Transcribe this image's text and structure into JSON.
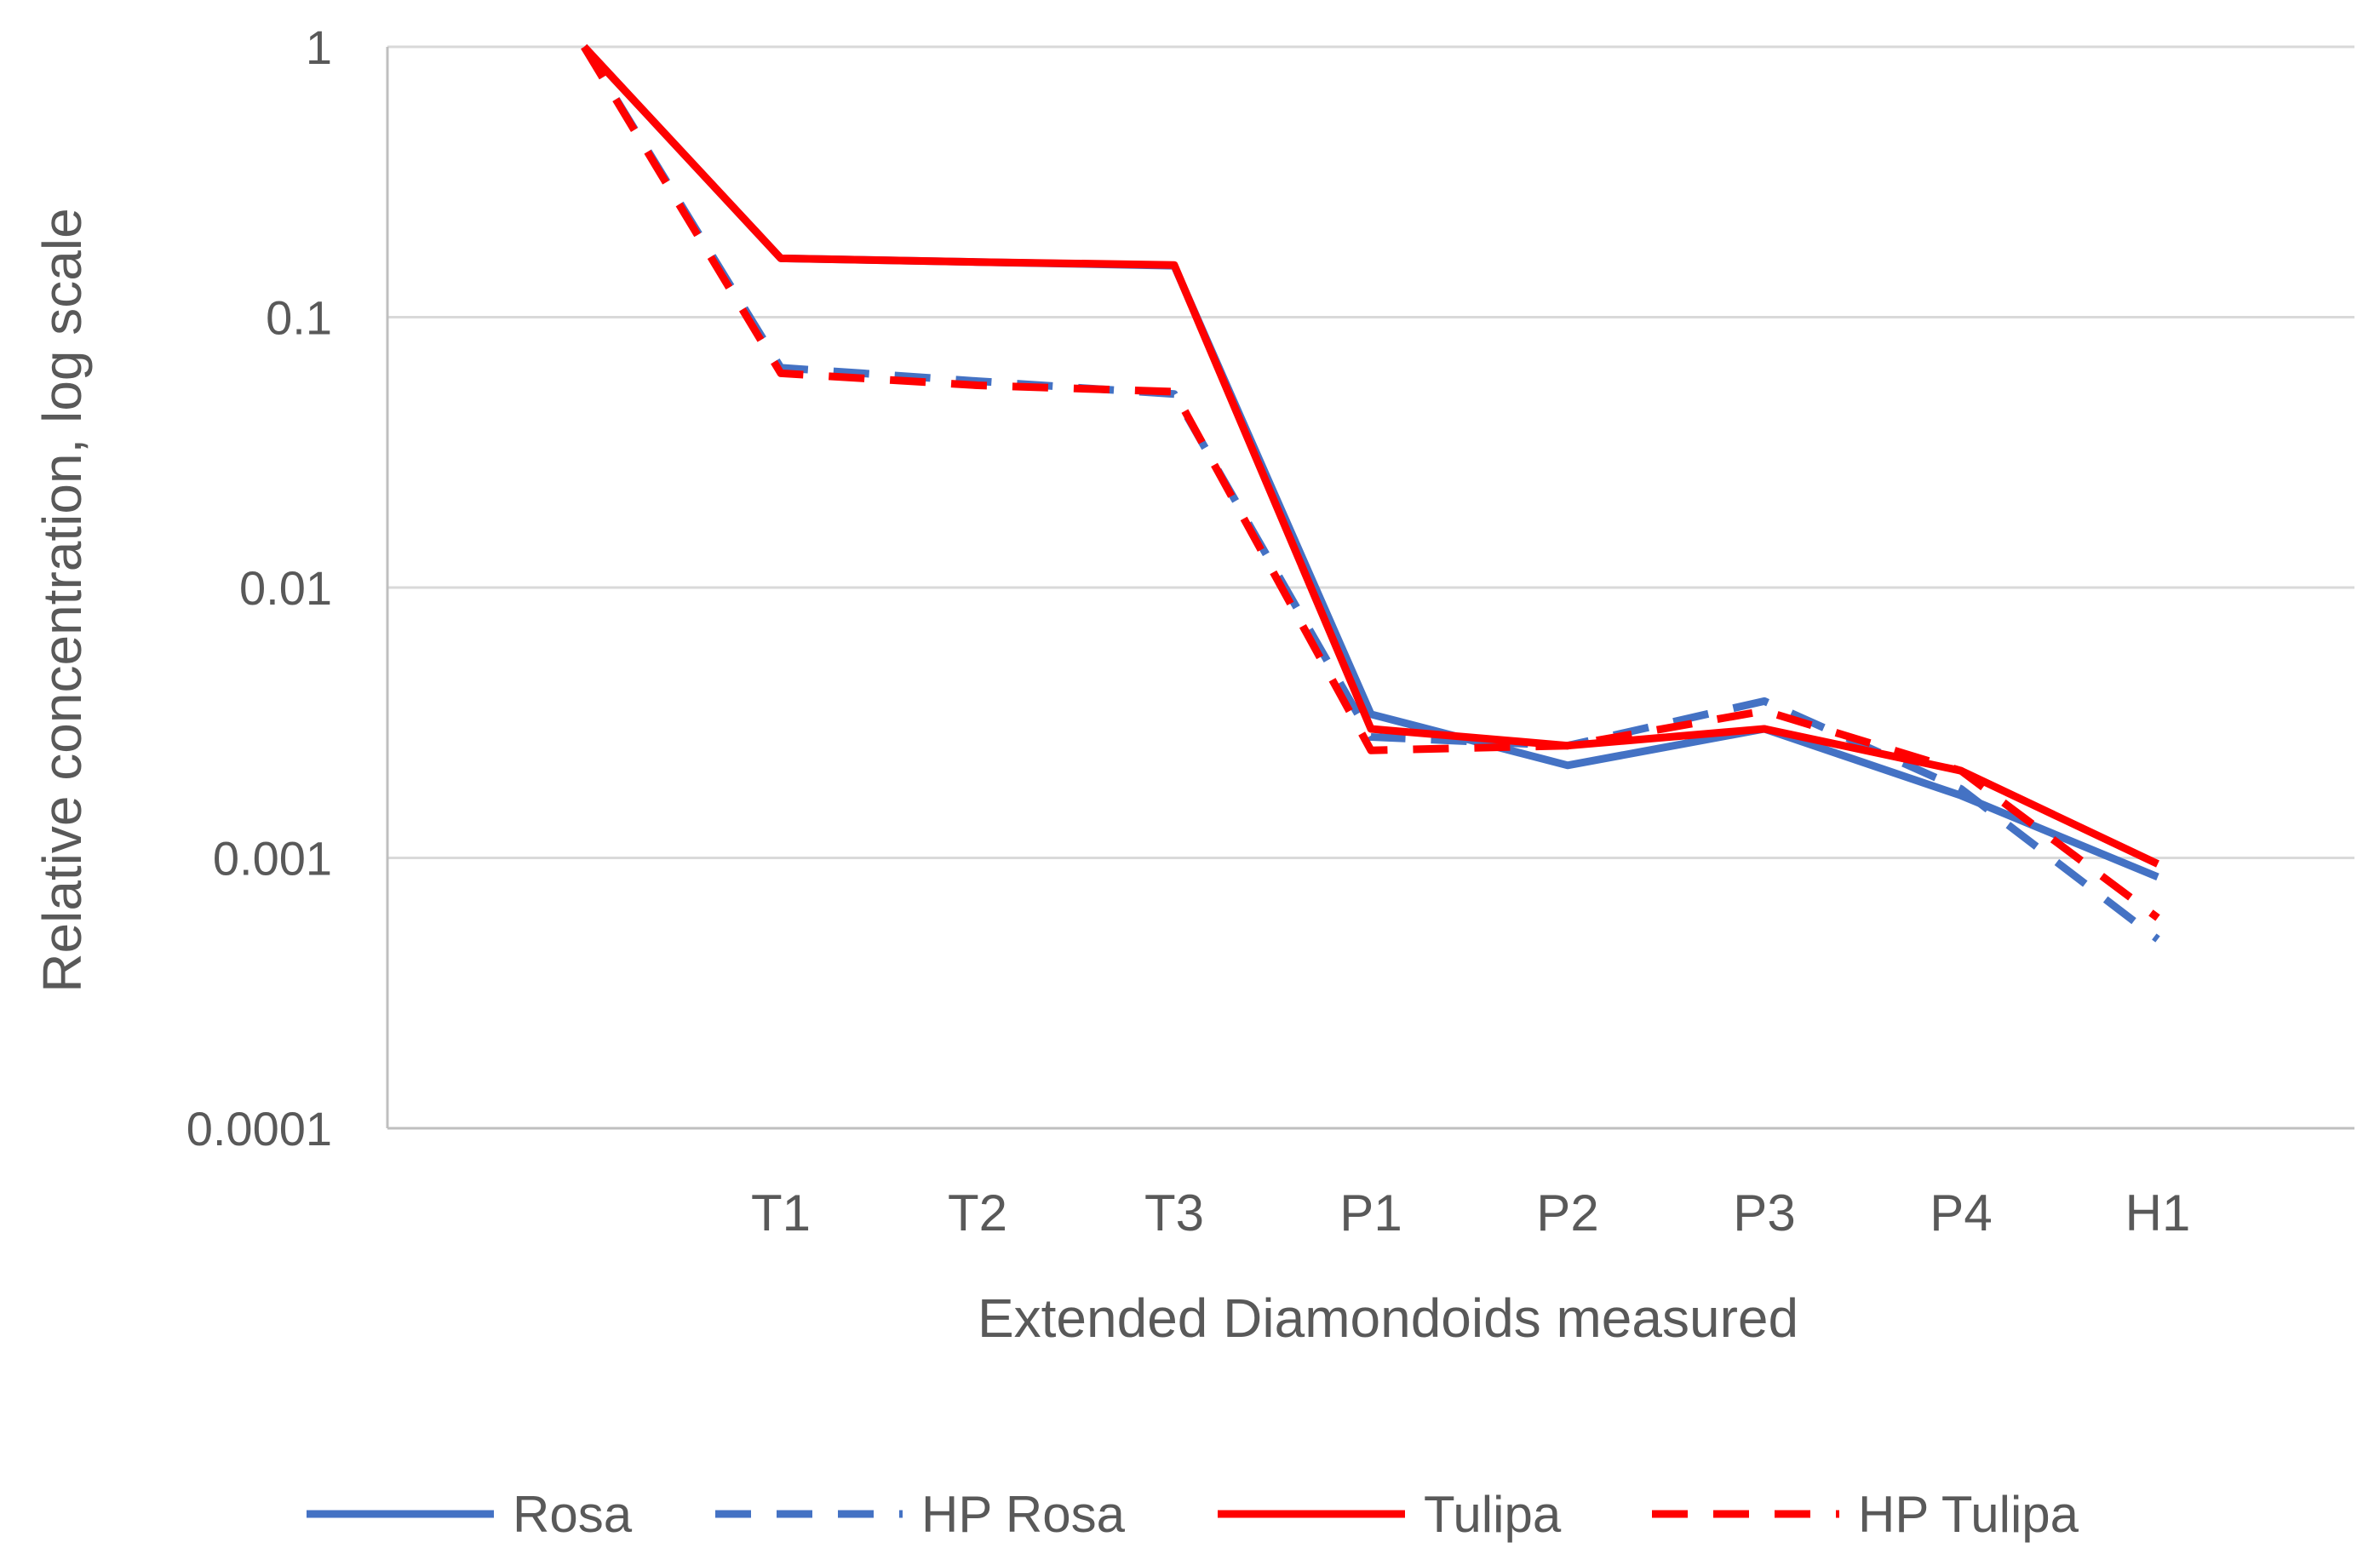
{
  "chart_data": {
    "type": "line",
    "title": "",
    "xlabel": "Extended Diamondoids measured",
    "ylabel": "Relative concentration, log scale",
    "y_scale": "log",
    "ylim": [
      0.0001,
      1
    ],
    "y_ticks": [
      "1",
      "0.1",
      "0.01",
      "0.001",
      "0.0001"
    ],
    "y_tick_values": [
      1,
      0.1,
      0.01,
      0.001,
      0.0001
    ],
    "categories": [
      "",
      "T1",
      "T2",
      "T3",
      "P1",
      "P2",
      "P3",
      "P4",
      "H1"
    ],
    "grid": true,
    "legend_position": "bottom",
    "series": [
      {
        "name": "Rosa",
        "color": "#4472C4",
        "dash": "solid",
        "values": [
          1,
          0.165,
          0.16,
          0.155,
          0.0034,
          0.0022,
          0.003,
          0.0017,
          0.00085
        ]
      },
      {
        "name": "HP Rosa",
        "color": "#4472C4",
        "dash": "dashed",
        "values": [
          1,
          0.065,
          0.058,
          0.052,
          0.0028,
          0.0026,
          0.0038,
          0.0018,
          0.0005
        ]
      },
      {
        "name": "Tulipa",
        "color": "#FF0000",
        "dash": "solid",
        "values": [
          1,
          0.165,
          0.16,
          0.156,
          0.003,
          0.0026,
          0.003,
          0.0021,
          0.00095
        ]
      },
      {
        "name": "HP Tulipa",
        "color": "#FF0000",
        "dash": "dashed",
        "values": [
          1,
          0.062,
          0.056,
          0.053,
          0.0025,
          0.0026,
          0.0035,
          0.0021,
          0.0006
        ]
      }
    ]
  }
}
